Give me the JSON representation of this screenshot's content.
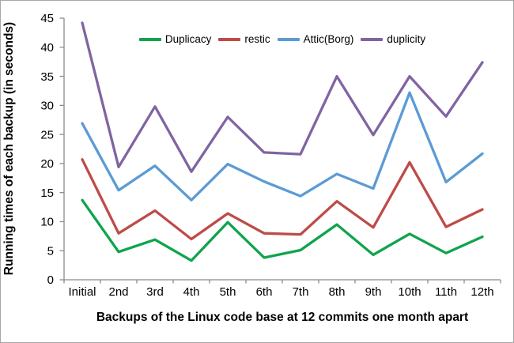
{
  "chart_data": {
    "type": "line",
    "title": "",
    "xlabel": "Backups of the Linux code base at 12 commits one month apart",
    "ylabel": "Running times of each backup  (in seconds)",
    "categories": [
      "Initial",
      "2nd",
      "3rd",
      "4th",
      "5th",
      "6th",
      "7th",
      "8th",
      "9th",
      "10th",
      "11th",
      "12th"
    ],
    "series": [
      {
        "name": "Duplicacy",
        "color": "#0FA44C",
        "values": [
          13.7,
          4.8,
          6.9,
          3.3,
          9.9,
          3.8,
          5.1,
          9.5,
          4.3,
          7.9,
          4.6,
          7.4
        ]
      },
      {
        "name": "restic",
        "color": "#BE4B48",
        "values": [
          20.7,
          8.0,
          11.9,
          7.0,
          11.4,
          8.0,
          7.8,
          13.5,
          9.0,
          20.2,
          9.1,
          12.1
        ]
      },
      {
        "name": "Attic(Borg)",
        "color": "#5B9BD5",
        "values": [
          26.9,
          15.4,
          19.6,
          13.7,
          19.9,
          16.9,
          14.4,
          18.2,
          15.7,
          32.2,
          16.8,
          21.7
        ]
      },
      {
        "name": "duplicity",
        "color": "#8064A2",
        "values": [
          44.2,
          19.4,
          29.8,
          18.6,
          28.0,
          21.9,
          21.6,
          35.0,
          24.9,
          35.0,
          28.1,
          37.4
        ]
      }
    ],
    "ylim": [
      0,
      45
    ],
    "y_tick_step": 5,
    "grid": "off",
    "legend_position": "top",
    "axis_color": "#8C8C8C",
    "text_color": "#000000"
  }
}
